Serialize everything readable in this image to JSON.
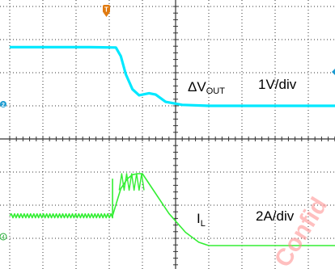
{
  "chart_data": {
    "type": "line",
    "title": "",
    "grid": true,
    "x_divisions": 10,
    "y_divisions": 8,
    "trigger_marker": "T",
    "colors": {
      "background": "#ffffff",
      "grid": "#333333",
      "vout_trace": "#00e8ff",
      "il_trace": "#33ee33",
      "vout_marker": "#1a9ad0",
      "il_marker": "#22aa33",
      "trigger": "#e07a10",
      "watermark": "#ff7070"
    },
    "series": [
      {
        "name": "ΔVOUT",
        "channel": "2",
        "scale_label": "1V/div",
        "unit": "V",
        "time_div": [
          0,
          0.8,
          1.6,
          2.4,
          3.2,
          3.35,
          3.5,
          3.7,
          3.9,
          4.2,
          4.4,
          4.7,
          5.2,
          6.0,
          7.0,
          8.0,
          9.0,
          10.0
        ],
        "div_from_top": [
          1.23,
          1.23,
          1.23,
          1.23,
          1.24,
          1.5,
          2.05,
          2.5,
          2.68,
          2.62,
          2.66,
          2.88,
          2.97,
          3.0,
          3.0,
          3.0,
          3.0,
          3.0
        ]
      },
      {
        "name": "IL",
        "channel": "4",
        "scale_label": "2A/div",
        "unit": "A",
        "ripple_end_div": 3.1,
        "time_div": [
          3.1,
          3.35,
          3.55,
          3.7,
          3.85,
          4.0,
          4.3,
          4.8,
          5.3,
          5.7,
          6.0,
          7.0,
          8.0,
          9.0,
          10.0
        ],
        "div_from_top": [
          6.32,
          5.5,
          5.2,
          5.08,
          5.05,
          5.05,
          5.5,
          6.25,
          6.82,
          7.12,
          7.22,
          7.22,
          7.22,
          7.22,
          7.22
        ],
        "ripple": {
          "center_div_from_top": 6.32,
          "peak_to_peak_div": 0.12
        },
        "spikes": {
          "from_div": 3.3,
          "to_div": 4.05,
          "count": 5,
          "top_div_from_top": 5.05,
          "bottom_div_from_top": 5.55
        }
      }
    ]
  },
  "labels": {
    "vout_prefix": "ΔV",
    "vout_subscript": "OUT",
    "vout_scale": "1V/div",
    "il_prefix": "I",
    "il_subscript": "L",
    "il_scale": "2A/div",
    "ch2_marker": "2",
    "ch4_marker": "4",
    "trigger": "T",
    "watermark": "Confid"
  }
}
